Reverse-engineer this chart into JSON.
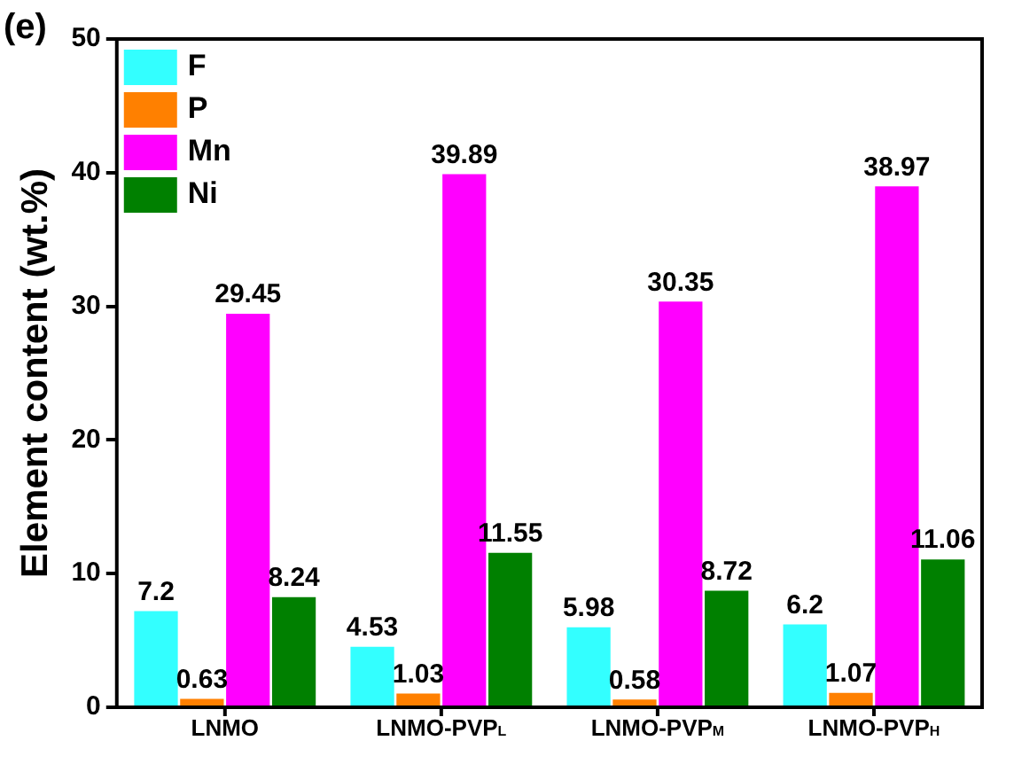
{
  "chart_data": {
    "type": "bar",
    "ylabel": "Element content (wt.%)",
    "categories": [
      "LNMO",
      "LNMO-PVP$_{L}$",
      "LNMO-PVP$_{M}$",
      "LNMO-PVP$_{H}$"
    ],
    "series": [
      {
        "name": "F",
        "color": "#33ffff",
        "values": [
          7.2,
          4.53,
          5.98,
          6.2
        ]
      },
      {
        "name": "P",
        "color": "#ff8000",
        "values": [
          0.63,
          1.03,
          0.58,
          1.07
        ]
      },
      {
        "name": "Mn",
        "color": "#ff00ff",
        "values": [
          29.45,
          39.89,
          30.35,
          38.97
        ]
      },
      {
        "name": "Ni",
        "color": "#008000",
        "values": [
          8.24,
          11.55,
          8.72,
          11.06
        ]
      }
    ],
    "ylim": [
      0,
      50
    ],
    "yticks": [
      0,
      10,
      20,
      30,
      40,
      50
    ],
    "grid": false,
    "legend": "top left",
    "data_labels": true,
    "annotations": [
      "(e)"
    ]
  }
}
